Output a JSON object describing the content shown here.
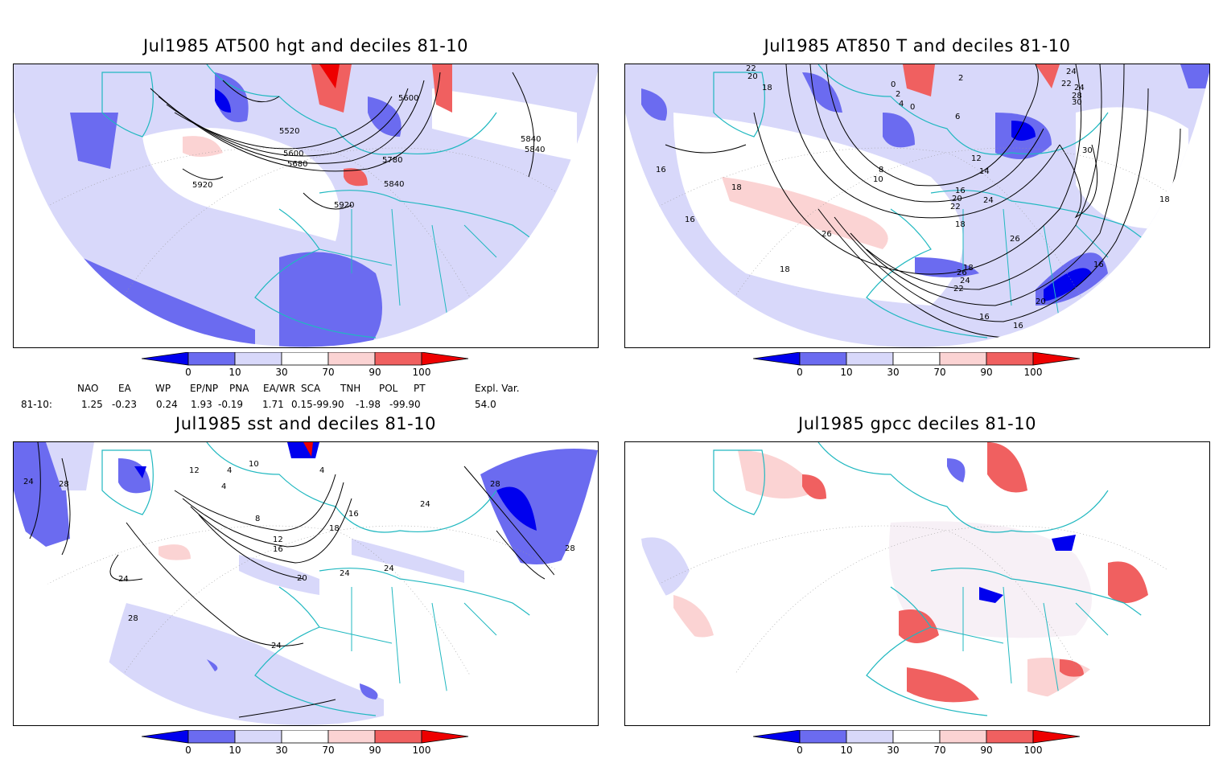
{
  "panels": [
    {
      "id": "at500",
      "title": "Jul1985 AT500 hgt and deciles 81-10",
      "contour_labels": [
        "5600",
        "5520",
        "5600",
        "5680",
        "5780",
        "5840",
        "5840",
        "5840",
        "5920",
        "5920"
      ]
    },
    {
      "id": "at850",
      "title": "Jul1985 AT850 T and deciles 81-10",
      "contour_labels": [
        "22",
        "20",
        "18",
        "0",
        "2",
        "4",
        "6",
        "0",
        "2",
        "24",
        "22",
        "24",
        "28",
        "30",
        "30",
        "16",
        "18",
        "16",
        "8",
        "10",
        "12",
        "14",
        "16",
        "20",
        "22",
        "24",
        "18",
        "26",
        "26",
        "18",
        "16",
        "18",
        "26",
        "24",
        "22",
        "20",
        "18",
        "16",
        "16"
      ]
    },
    {
      "id": "sst",
      "title": "Jul1985 sst and deciles 81-10",
      "contour_labels": [
        "24",
        "28",
        "12",
        "4",
        "10",
        "4",
        "4",
        "8",
        "12",
        "16",
        "20",
        "16",
        "18",
        "24",
        "24",
        "24",
        "28",
        "28",
        "24",
        "28",
        "24"
      ]
    },
    {
      "id": "gpcc",
      "title": "Jul1985 gpcc deciles 81-10",
      "contour_labels": []
    }
  ],
  "colorbar": {
    "ticks": [
      "0",
      "10",
      "30",
      "70",
      "90",
      "100"
    ],
    "colors": [
      "#0000ee",
      "#6b6bf0",
      "#d8d8fa",
      "#ffffff",
      "#fbd3d3",
      "#f06060",
      "#ee0000"
    ]
  },
  "indices": {
    "headers": [
      "NAO",
      "EA",
      "WP",
      "EP/NP",
      "PNA",
      "EA/WR",
      "SCA",
      "TNH",
      "POL",
      "PT",
      "Expl. Var."
    ],
    "row_label": "81-10:",
    "values": [
      "1.25",
      "-0.23",
      "0.24",
      "1.93",
      "-0.19",
      "1.71",
      "0.15",
      "-99.90",
      "-1.98",
      "-99.90",
      "54.0"
    ]
  },
  "colors": {
    "coast": "#20b8c0",
    "strong_neg": "#0000ee",
    "neg": "#6b6bf0",
    "weak_neg": "#d8d8fa",
    "weak_pos": "#fbd3d3",
    "pos": "#f06060",
    "strong_pos": "#ee0000"
  }
}
